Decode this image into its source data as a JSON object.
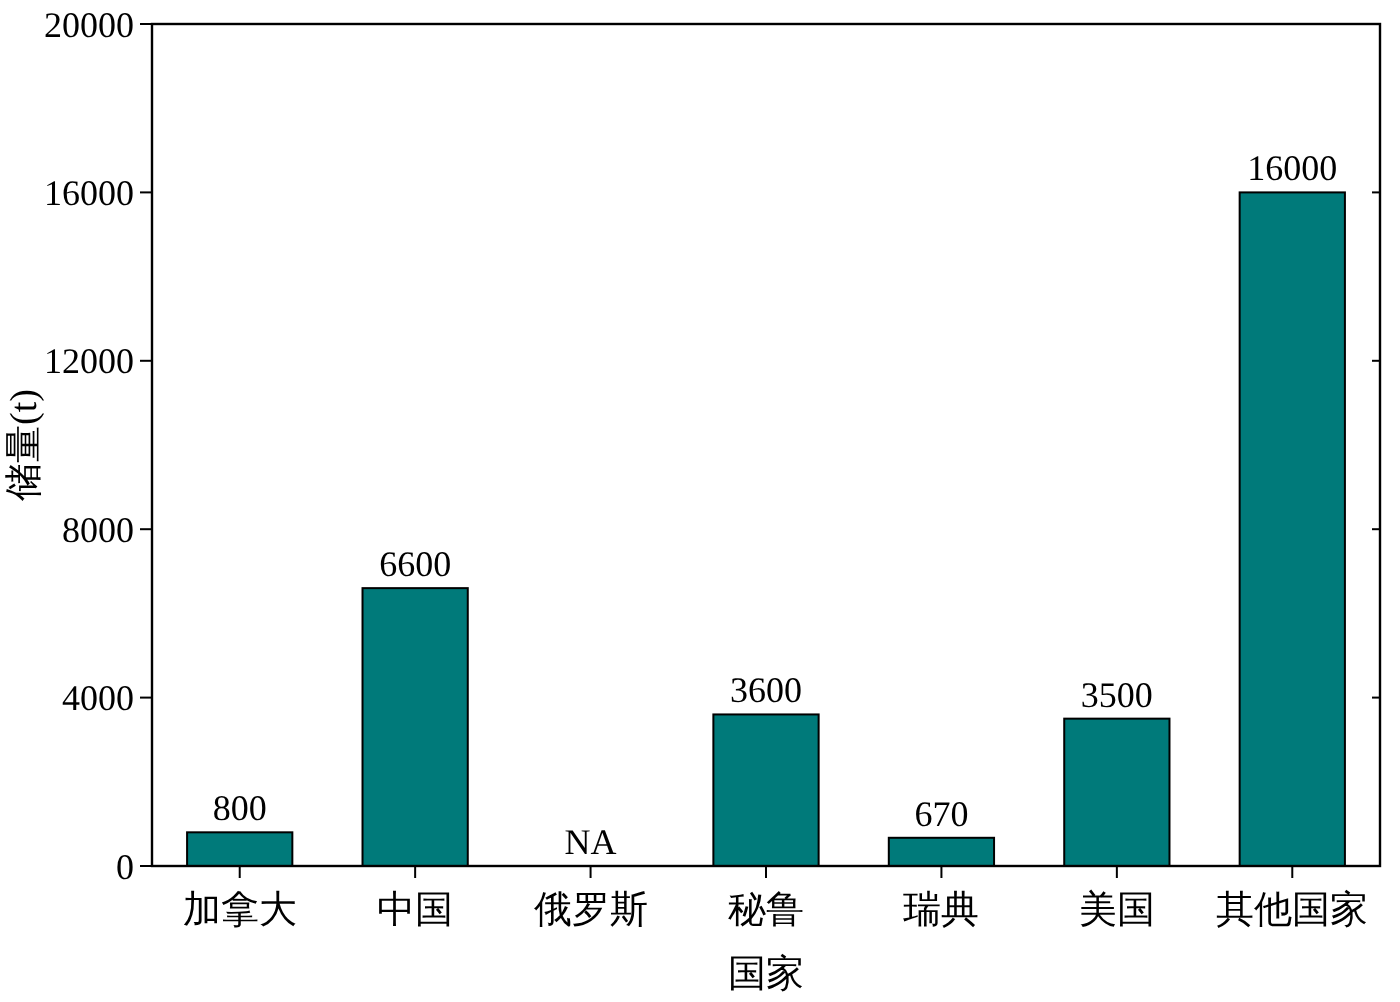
{
  "chart_data": {
    "type": "bar",
    "xlabel": "国家",
    "ylabel": "储量(t)",
    "categories": [
      "加拿大",
      "中国",
      "俄罗斯",
      "秘鲁",
      "瑞典",
      "美国",
      "其他国家"
    ],
    "values": [
      800,
      6600,
      null,
      3600,
      670,
      3500,
      16000
    ],
    "value_labels": [
      "800",
      "6600",
      "NA",
      "3600",
      "670",
      "3500",
      "16000"
    ],
    "color": "#007a7a",
    "ylim": [
      0,
      20000
    ],
    "yticks": [
      0,
      4000,
      8000,
      12000,
      16000,
      20000
    ],
    "grid": false
  }
}
